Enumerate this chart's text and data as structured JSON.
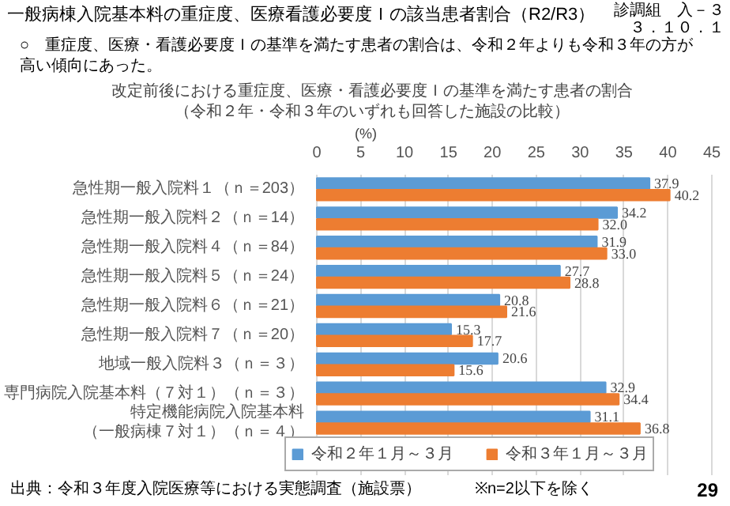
{
  "chart_data": {
    "type": "bar",
    "orientation": "horizontal",
    "title": "改定前後における重症度、医療・看護必要度Ｉの基準を満たす患者の割合",
    "subtitle": "（令和２年・令和３年のいずれも回答した施設の比較）",
    "xlabel": "(%)",
    "categories": [
      "急性期一般入院料１（ｎ＝203）",
      "急性期一般入院料２（ｎ＝14）",
      "急性期一般入院料４（ｎ＝84）",
      "急性期一般入院料５（ｎ＝24）",
      "急性期一般入院料６（ｎ＝21）",
      "急性期一般入院料７（ｎ＝20）",
      "地域一般入院料３（ｎ＝３）",
      "専門病院入院基本料（７対１）（ｎ＝３）",
      "特定機能病院入院基本料（一般病棟７対１）（ｎ＝４）"
    ],
    "series": [
      {
        "name": "令和２年１月～３月",
        "color": "#5b9bd5",
        "values": [
          37.9,
          34.2,
          31.9,
          27.7,
          20.8,
          15.3,
          20.6,
          32.9,
          31.1
        ],
        "value_labels": [
          "37.9",
          "34.2",
          "31.9",
          "27.7",
          "20.8",
          "15.3",
          "20.6",
          "32.9",
          "31.1"
        ]
      },
      {
        "name": "令和３年１月～３月",
        "color": "#ed7d31",
        "values": [
          40.2,
          32.0,
          33.0,
          28.8,
          21.6,
          17.7,
          15.6,
          34.4,
          36.8
        ],
        "value_labels": [
          "40.2",
          "32.0",
          "33.0",
          "28.8",
          "21.6",
          "17.7",
          "15.6",
          "34.4",
          "36.8"
        ]
      }
    ],
    "xlim": [
      0,
      45
    ],
    "xticks": [
      0,
      5,
      10,
      15,
      20,
      25,
      30,
      35,
      40,
      45
    ],
    "grid": "x",
    "legend": "bottom",
    "annotations": [
      "一般病棟入院基本料の重症度、医療看護必要度Ｉの該当患者割合（R2/R3）",
      "診調組　入－３",
      "３．１０．１",
      "○　重症度、医療・看護必要度Ｉの基準を満たす患者の割合は、令和２年よりも令和３年の方が高い傾向にあった。",
      "出典：令和３年度入院医療等における実態調査（施設票）",
      "※n=2以下を除く",
      "29"
    ]
  }
}
